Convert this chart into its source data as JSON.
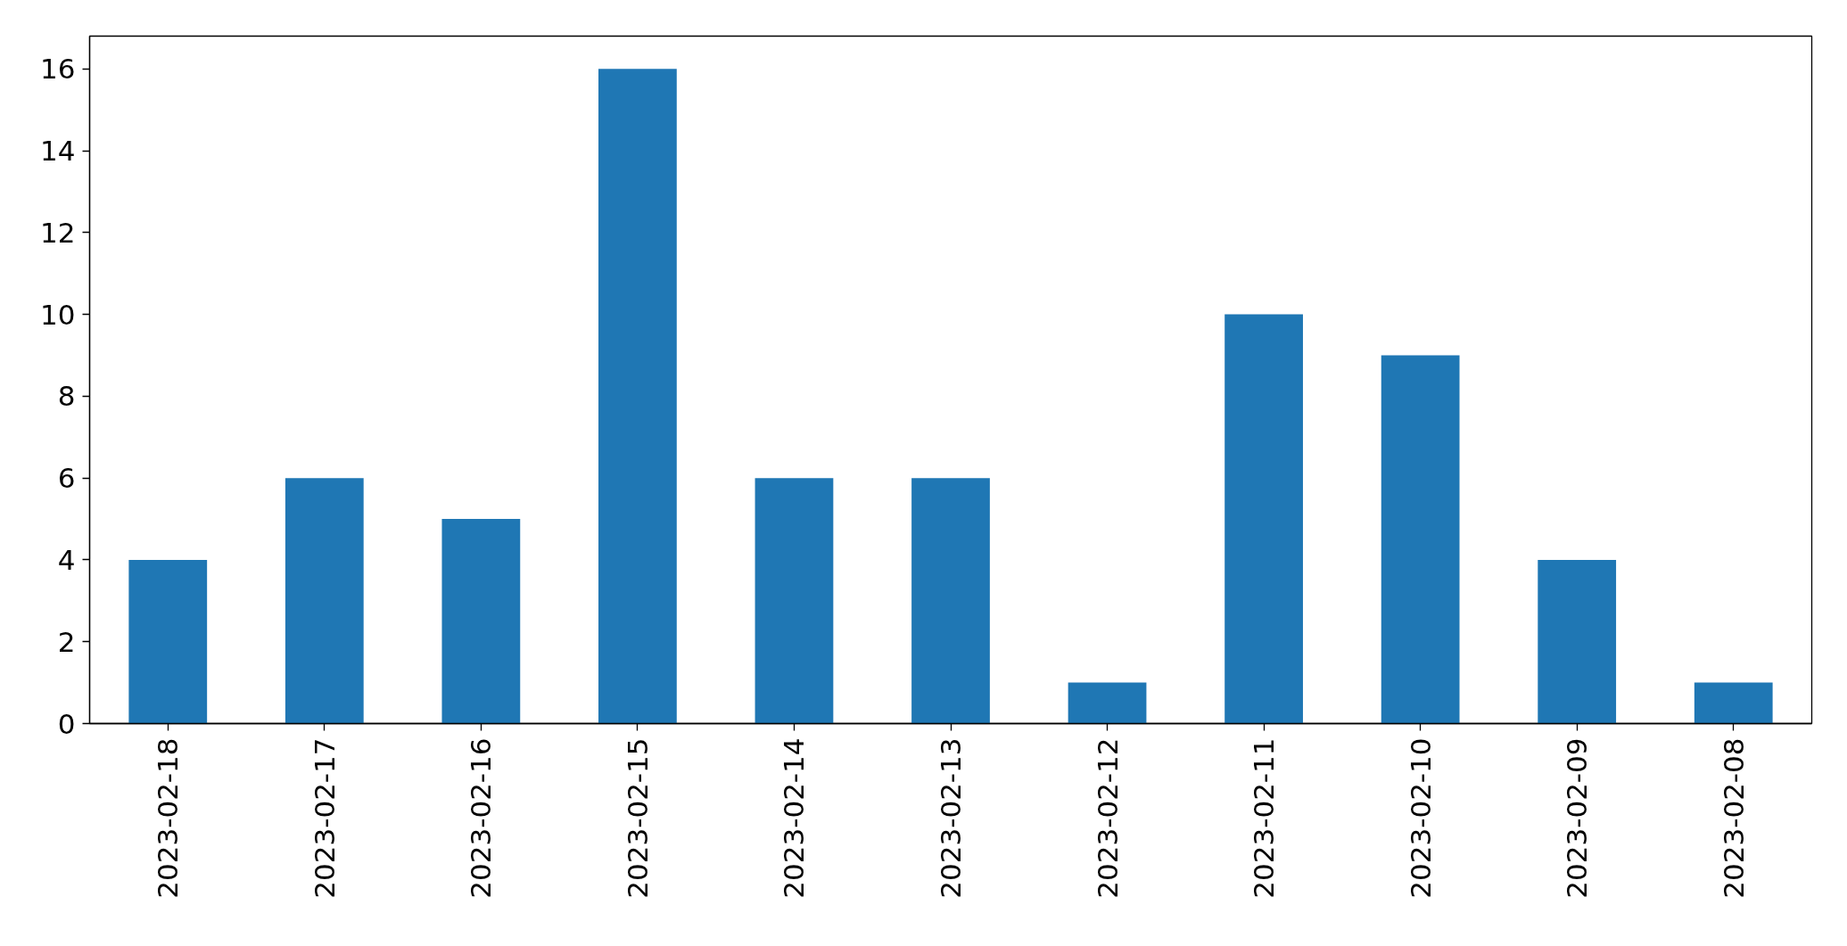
{
  "chart_data": {
    "type": "bar",
    "categories": [
      "2023-02-18",
      "2023-02-17",
      "2023-02-16",
      "2023-02-15",
      "2023-02-14",
      "2023-02-13",
      "2023-02-12",
      "2023-02-11",
      "2023-02-10",
      "2023-02-09",
      "2023-02-08"
    ],
    "values": [
      4,
      6,
      5,
      16,
      6,
      6,
      1,
      10,
      9,
      4,
      1
    ],
    "color": "#1f77b4",
    "ylim": [
      0,
      16.8
    ],
    "yticks": [
      0,
      2,
      4,
      6,
      8,
      10,
      12,
      14,
      16
    ],
    "grid": false
  }
}
